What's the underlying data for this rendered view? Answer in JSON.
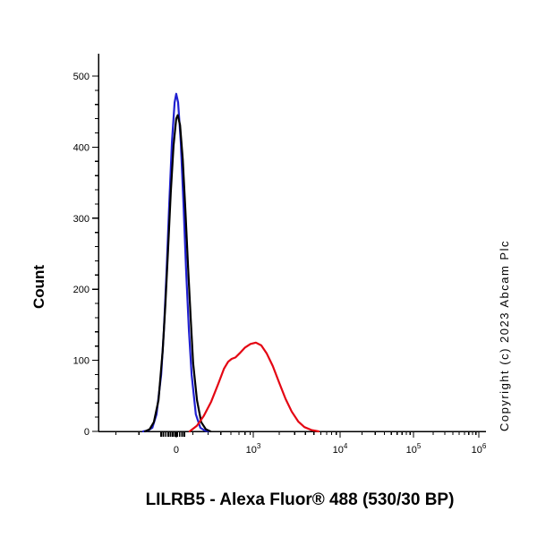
{
  "page": {
    "title": "LILRB5 - Alexa Fluor® 488 (530/30 BP)",
    "ylabel": "Count",
    "copyright": "Copyright (c) 2023 Abcam Plc"
  },
  "chart_data": {
    "type": "line",
    "chart_kind": "flow-cytometry-histogram",
    "title": "LILRB5 - Alexa Fluor® 488 (530/30 BP)",
    "xlabel": "LILRB5 - Alexa Fluor® 488 (530/30 BP)",
    "ylabel": "Count",
    "x_axis": {
      "scale": "biexponential",
      "ticks": [
        {
          "label": "0",
          "f": 0.2023
        },
        {
          "label": "10",
          "sup": "3",
          "f": 0.4023
        },
        {
          "label": "10",
          "sup": "4",
          "f": 0.6279
        },
        {
          "label": "10",
          "sup": "5",
          "f": 0.8186
        },
        {
          "label": "10",
          "sup": "6",
          "f": 0.9884
        }
      ],
      "minor_ticks_f": [
        0.045,
        0.105,
        0.245,
        0.285,
        0.318,
        0.344,
        0.365,
        0.381,
        0.394,
        0.47,
        0.51,
        0.538,
        0.56,
        0.578,
        0.593,
        0.606,
        0.618,
        0.685,
        0.719,
        0.743,
        0.761,
        0.776,
        0.789,
        0.8,
        0.81,
        0.87,
        0.9,
        0.921,
        0.937,
        0.951,
        0.962,
        0.972,
        0.981
      ],
      "dense_ticks_f": [
        0.163,
        0.169,
        0.175,
        0.181,
        0.187,
        0.193,
        0.199,
        0.205,
        0.211,
        0.217,
        0.223
      ]
    },
    "y_axis": {
      "min": 0,
      "max": 500,
      "major_step": 100,
      "minor_step": 20,
      "tick_labels": [
        "0",
        "100",
        "200",
        "300",
        "400",
        "500"
      ]
    },
    "series": [
      {
        "name": "blue-curve",
        "color": "#2020d0",
        "peak_count": 475,
        "peak_x_value": 0,
        "points": [
          [
            0.116,
            0
          ],
          [
            0.128,
            1
          ],
          [
            0.14,
            5
          ],
          [
            0.151,
            24
          ],
          [
            0.163,
            80
          ],
          [
            0.17,
            142
          ],
          [
            0.177,
            225
          ],
          [
            0.184,
            320
          ],
          [
            0.191,
            407
          ],
          [
            0.198,
            463
          ],
          [
            0.202,
            475
          ],
          [
            0.207,
            463
          ],
          [
            0.214,
            407
          ],
          [
            0.221,
            320
          ],
          [
            0.228,
            225
          ],
          [
            0.235,
            142
          ],
          [
            0.242,
            80
          ],
          [
            0.253,
            24
          ],
          [
            0.265,
            5
          ],
          [
            0.277,
            1
          ],
          [
            0.288,
            0
          ]
        ]
      },
      {
        "name": "black-curve",
        "color": "#000000",
        "peak_count": 445,
        "peak_x_value": 0,
        "points": [
          [
            0.121,
            0
          ],
          [
            0.133,
            3
          ],
          [
            0.144,
            13
          ],
          [
            0.156,
            44
          ],
          [
            0.167,
            114
          ],
          [
            0.174,
            179
          ],
          [
            0.181,
            256
          ],
          [
            0.188,
            336
          ],
          [
            0.195,
            402
          ],
          [
            0.202,
            440
          ],
          [
            0.206,
            445
          ],
          [
            0.212,
            431
          ],
          [
            0.219,
            383
          ],
          [
            0.226,
            310
          ],
          [
            0.233,
            230
          ],
          [
            0.24,
            156
          ],
          [
            0.246,
            96
          ],
          [
            0.256,
            44
          ],
          [
            0.267,
            13
          ],
          [
            0.279,
            3
          ],
          [
            0.291,
            0
          ]
        ]
      },
      {
        "name": "red-curve",
        "color": "#e40613",
        "peak_count": 125,
        "peak_x_value": 1100,
        "points": [
          [
            0.237,
            0
          ],
          [
            0.256,
            8
          ],
          [
            0.274,
            22
          ],
          [
            0.293,
            42
          ],
          [
            0.312,
            68
          ],
          [
            0.326,
            88
          ],
          [
            0.337,
            98
          ],
          [
            0.346,
            102
          ],
          [
            0.356,
            104
          ],
          [
            0.367,
            110
          ],
          [
            0.381,
            118
          ],
          [
            0.395,
            123
          ],
          [
            0.409,
            125
          ],
          [
            0.423,
            121
          ],
          [
            0.437,
            110
          ],
          [
            0.453,
            92
          ],
          [
            0.47,
            68
          ],
          [
            0.486,
            46
          ],
          [
            0.502,
            28
          ],
          [
            0.519,
            14
          ],
          [
            0.535,
            6
          ],
          [
            0.553,
            2
          ],
          [
            0.572,
            0
          ]
        ]
      }
    ]
  }
}
